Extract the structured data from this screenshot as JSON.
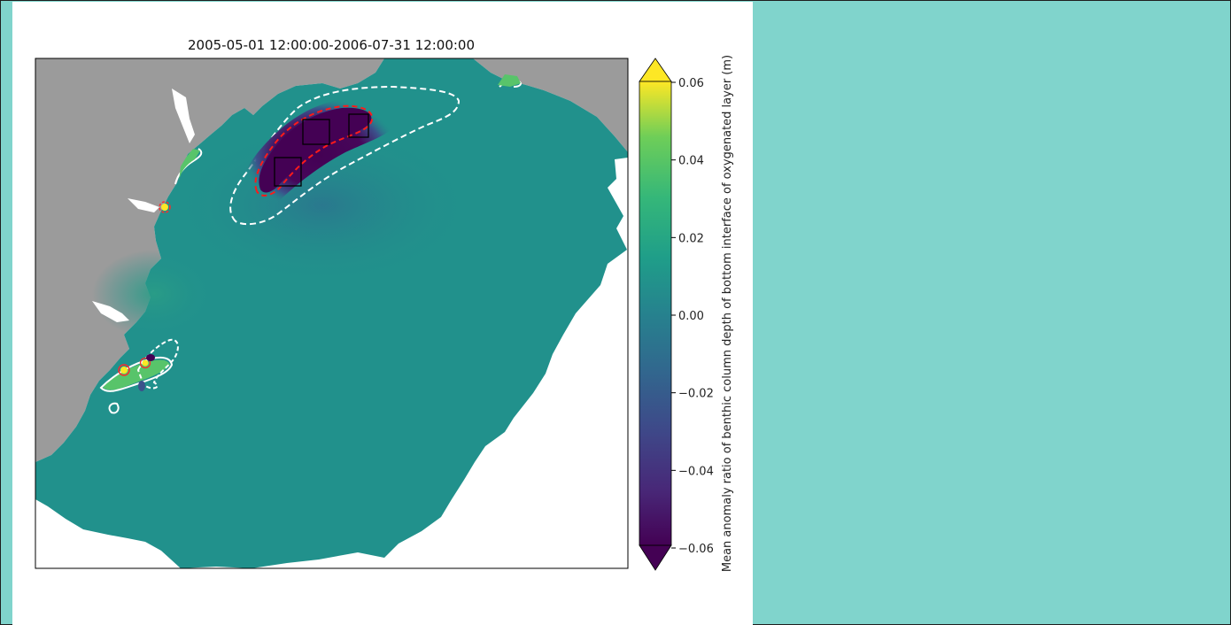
{
  "figure": {
    "title": "2005-05-01 12:00:00-2006-07-31 12:00:00",
    "colorbar": {
      "label": "Mean anomaly ratio of benthic column depth of bottom interface of oxygenated layer (m)",
      "ticks": [
        "0.06",
        "0.04",
        "0.02",
        "0.00",
        "−0.02",
        "−0.04",
        "−0.06"
      ],
      "range": [
        -0.06,
        0.06
      ],
      "extend": "both",
      "colormap": "viridis"
    },
    "colors": {
      "land": "#9b9b9b",
      "sea_base": "#21918c",
      "negative_core": "#440154",
      "positive_extreme": "#fde725",
      "contour_outer": "#ffffff",
      "contour_inner": "#ff0000",
      "page_background": "#80d4cc"
    },
    "annotations": {
      "study_boxes": 3,
      "contour_styles": [
        "solid-white",
        "dashed-white",
        "dashed-red"
      ]
    }
  }
}
